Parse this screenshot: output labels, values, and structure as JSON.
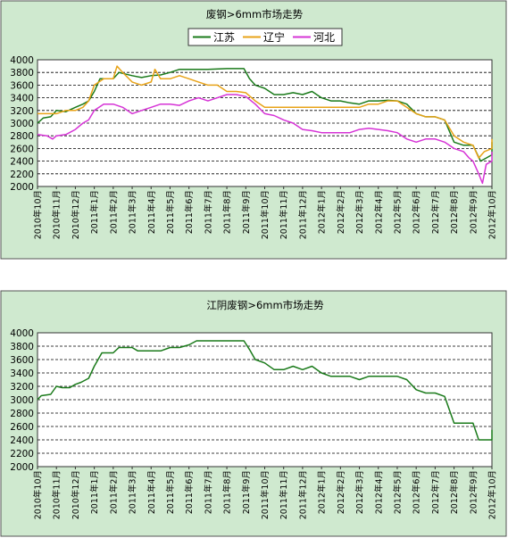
{
  "chart_data": [
    {
      "type": "line",
      "title": "废钢>6mm市场走势",
      "xlabel": "",
      "ylabel": "",
      "ylim": [
        2000,
        4000
      ],
      "yticks": [
        2000,
        2200,
        2400,
        2600,
        2800,
        3000,
        3200,
        3400,
        3600,
        3800,
        4000
      ],
      "grid": true,
      "legend": "top",
      "categories": [
        "2010年10月",
        "2010年11月",
        "2010年12月",
        "2011年1月",
        "2011年2月",
        "2011年3月",
        "2011年4月",
        "2011年5月",
        "2011年6月",
        "2011年7月",
        "2011年8月",
        "2011年9月",
        "2011年10月",
        "2011年11月",
        "2011年12月",
        "2012年1月",
        "2012年2月",
        "2012年3月",
        "2012年4月",
        "2012年5月",
        "2012年6月",
        "2012年7月",
        "2012年8月",
        "2012年9月",
        "2012年10月"
      ],
      "series": [
        {
          "name": "江苏",
          "color": "#1a7a1a",
          "points": [
            [
              0,
              3000
            ],
            [
              0.3,
              3080
            ],
            [
              0.7,
              3100
            ],
            [
              1,
              3200
            ],
            [
              1.5,
              3180
            ],
            [
              2,
              3250
            ],
            [
              2.4,
              3300
            ],
            [
              2.7,
              3350
            ],
            [
              3,
              3500
            ],
            [
              3.3,
              3700
            ],
            [
              4,
              3700
            ],
            [
              4.3,
              3800
            ],
            [
              5,
              3750
            ],
            [
              5.5,
              3720
            ],
            [
              6,
              3750
            ],
            [
              6.5,
              3760
            ],
            [
              7,
              3800
            ],
            [
              7.5,
              3850
            ],
            [
              8,
              3850
            ],
            [
              9,
              3850
            ],
            [
              10,
              3860
            ],
            [
              10.9,
              3860
            ],
            [
              11.2,
              3700
            ],
            [
              11.5,
              3600
            ],
            [
              12,
              3550
            ],
            [
              12.5,
              3450
            ],
            [
              13,
              3450
            ],
            [
              13.5,
              3480
            ],
            [
              14,
              3450
            ],
            [
              14.5,
              3500
            ],
            [
              15,
              3400
            ],
            [
              15.5,
              3350
            ],
            [
              16,
              3350
            ],
            [
              16.5,
              3320
            ],
            [
              17,
              3300
            ],
            [
              17.5,
              3350
            ],
            [
              18,
              3350
            ],
            [
              18.5,
              3360
            ],
            [
              19,
              3350
            ],
            [
              19.5,
              3300
            ],
            [
              20,
              3150
            ],
            [
              20.5,
              3100
            ],
            [
              21,
              3100
            ],
            [
              21.5,
              3050
            ],
            [
              22,
              2700
            ],
            [
              22.5,
              2650
            ],
            [
              23,
              2650
            ],
            [
              23.4,
              2400
            ],
            [
              23.7,
              2450
            ],
            [
              24,
              2500
            ],
            [
              24.3,
              2550
            ],
            [
              24.4,
              2700
            ]
          ]
        },
        {
          "name": "辽宁",
          "color": "#e8a317",
          "points": [
            [
              0,
              3150
            ],
            [
              0.3,
              3150
            ],
            [
              0.7,
              3150
            ],
            [
              1,
              3150
            ],
            [
              1.5,
              3200
            ],
            [
              2,
              3200
            ],
            [
              2.4,
              3250
            ],
            [
              2.7,
              3350
            ],
            [
              3,
              3600
            ],
            [
              3.5,
              3700
            ],
            [
              4,
              3700
            ],
            [
              4.2,
              3900
            ],
            [
              4.5,
              3800
            ],
            [
              5,
              3650
            ],
            [
              5.5,
              3600
            ],
            [
              6,
              3650
            ],
            [
              6.2,
              3850
            ],
            [
              6.5,
              3700
            ],
            [
              7,
              3700
            ],
            [
              7.5,
              3750
            ],
            [
              8,
              3700
            ],
            [
              8.5,
              3650
            ],
            [
              9,
              3600
            ],
            [
              9.5,
              3600
            ],
            [
              10,
              3500
            ],
            [
              10.5,
              3500
            ],
            [
              11,
              3480
            ],
            [
              11.5,
              3350
            ],
            [
              12,
              3250
            ],
            [
              13,
              3250
            ],
            [
              14,
              3250
            ],
            [
              15,
              3250
            ],
            [
              16,
              3250
            ],
            [
              17,
              3250
            ],
            [
              17.5,
              3300
            ],
            [
              18,
              3300
            ],
            [
              18.5,
              3350
            ],
            [
              19,
              3350
            ],
            [
              19.5,
              3250
            ],
            [
              20,
              3150
            ],
            [
              20.5,
              3100
            ],
            [
              21,
              3100
            ],
            [
              21.5,
              3050
            ],
            [
              22,
              2800
            ],
            [
              22.5,
              2700
            ],
            [
              23,
              2650
            ],
            [
              23.3,
              2450
            ],
            [
              23.6,
              2550
            ],
            [
              24,
              2600
            ],
            [
              24.3,
              2600
            ],
            [
              24.4,
              2750
            ]
          ]
        },
        {
          "name": "河北",
          "color": "#d633d6",
          "points": [
            [
              0,
              2820
            ],
            [
              0.5,
              2800
            ],
            [
              0.8,
              2750
            ],
            [
              1,
              2800
            ],
            [
              1.5,
              2820
            ],
            [
              2,
              2900
            ],
            [
              2.4,
              3000
            ],
            [
              2.7,
              3050
            ],
            [
              3,
              3200
            ],
            [
              3.5,
              3300
            ],
            [
              4,
              3300
            ],
            [
              4.5,
              3250
            ],
            [
              5,
              3150
            ],
            [
              5.5,
              3200
            ],
            [
              6,
              3250
            ],
            [
              6.5,
              3300
            ],
            [
              7,
              3300
            ],
            [
              7.5,
              3280
            ],
            [
              8,
              3350
            ],
            [
              8.5,
              3400
            ],
            [
              9,
              3350
            ],
            [
              9.5,
              3400
            ],
            [
              10,
              3450
            ],
            [
              10.5,
              3450
            ],
            [
              11,
              3420
            ],
            [
              11.5,
              3300
            ],
            [
              12,
              3150
            ],
            [
              12.5,
              3120
            ],
            [
              13,
              3050
            ],
            [
              13.5,
              3000
            ],
            [
              14,
              2900
            ],
            [
              14.5,
              2880
            ],
            [
              15,
              2850
            ],
            [
              16,
              2850
            ],
            [
              16.5,
              2850
            ],
            [
              17,
              2900
            ],
            [
              17.5,
              2920
            ],
            [
              18,
              2900
            ],
            [
              18.5,
              2880
            ],
            [
              19,
              2850
            ],
            [
              19.5,
              2750
            ],
            [
              20,
              2700
            ],
            [
              20.5,
              2750
            ],
            [
              21,
              2750
            ],
            [
              21.5,
              2700
            ],
            [
              22,
              2600
            ],
            [
              22.5,
              2550
            ],
            [
              22.8,
              2450
            ],
            [
              23,
              2400
            ],
            [
              23.3,
              2200
            ],
            [
              23.5,
              2050
            ],
            [
              23.7,
              2350
            ],
            [
              24,
              2400
            ],
            [
              24.3,
              2500
            ],
            [
              24.4,
              2550
            ]
          ]
        }
      ]
    },
    {
      "type": "line",
      "title": "江阴废钢>6mm市场走势",
      "xlabel": "",
      "ylabel": "",
      "ylim": [
        2000,
        4000
      ],
      "yticks": [
        2000,
        2200,
        2400,
        2600,
        2800,
        3000,
        3200,
        3400,
        3600,
        3800,
        4000
      ],
      "grid": true,
      "categories": [
        "2010年10月",
        "2010年11月",
        "2010年12月",
        "2011年1月",
        "2011年2月",
        "2011年3月",
        "2011年4月",
        "2011年5月",
        "2011年6月",
        "2011年7月",
        "2011年8月",
        "2011年9月",
        "2011年10月",
        "2011年11月",
        "2011年12月",
        "2012年1月",
        "2012年2月",
        "2012年3月",
        "2012年4月",
        "2012年5月",
        "2012年6月",
        "2012年7月",
        "2012年8月",
        "2012年9月",
        "2012年10月"
      ],
      "series": [
        {
          "color": "#1a7a1a",
          "points": [
            [
              0,
              3000
            ],
            [
              0.2,
              3060
            ],
            [
              0.7,
              3080
            ],
            [
              1,
              3200
            ],
            [
              1.3,
              3180
            ],
            [
              1.7,
              3180
            ],
            [
              2,
              3230
            ],
            [
              2.3,
              3260
            ],
            [
              2.7,
              3320
            ],
            [
              3,
              3500
            ],
            [
              3.4,
              3700
            ],
            [
              4,
              3700
            ],
            [
              4.3,
              3780
            ],
            [
              5,
              3780
            ],
            [
              5.3,
              3730
            ],
            [
              6,
              3730
            ],
            [
              6.5,
              3730
            ],
            [
              7,
              3780
            ],
            [
              7.5,
              3780
            ],
            [
              8,
              3820
            ],
            [
              8.4,
              3880
            ],
            [
              9,
              3880
            ],
            [
              10,
              3880
            ],
            [
              10.9,
              3880
            ],
            [
              11.2,
              3750
            ],
            [
              11.5,
              3600
            ],
            [
              12,
              3550
            ],
            [
              12.5,
              3450
            ],
            [
              13,
              3450
            ],
            [
              13.5,
              3500
            ],
            [
              14,
              3450
            ],
            [
              14.5,
              3500
            ],
            [
              15,
              3400
            ],
            [
              15.5,
              3350
            ],
            [
              16,
              3350
            ],
            [
              16.5,
              3350
            ],
            [
              17,
              3300
            ],
            [
              17.5,
              3350
            ],
            [
              18,
              3350
            ],
            [
              18.5,
              3350
            ],
            [
              19,
              3350
            ],
            [
              19.5,
              3300
            ],
            [
              20,
              3150
            ],
            [
              20.5,
              3100
            ],
            [
              21,
              3100
            ],
            [
              21.5,
              3050
            ],
            [
              22,
              2650
            ],
            [
              22.5,
              2650
            ],
            [
              23,
              2650
            ],
            [
              23.3,
              2400
            ],
            [
              23.7,
              2400
            ],
            [
              24,
              2400
            ],
            [
              24.2,
              2500
            ],
            [
              24.5,
              2500
            ],
            [
              24.6,
              2550
            ]
          ]
        }
      ]
    }
  ]
}
